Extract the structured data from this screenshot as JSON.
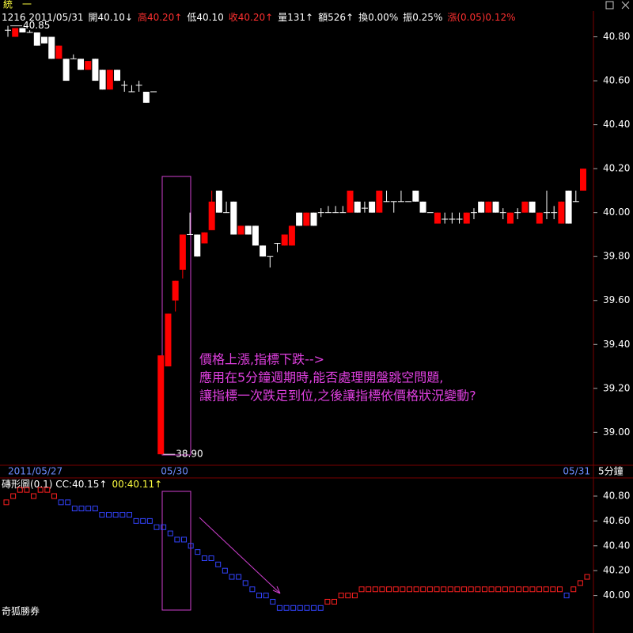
{
  "header": {
    "name": "統　一",
    "quote": [
      {
        "text": "1216 2011/05/31",
        "color": "#ffffff"
      },
      {
        "text": "開40.10↓",
        "color": "#ffffff"
      },
      {
        "text": "高40.20↑",
        "color": "#ff3030"
      },
      {
        "text": "低40.10",
        "color": "#ffffff"
      },
      {
        "text": "收40.20↑",
        "color": "#ff3030"
      },
      {
        "text": "量131↑",
        "color": "#ffffff"
      },
      {
        "text": "額526↑",
        "color": "#ffffff"
      },
      {
        "text": "換0.00%",
        "color": "#ffffff"
      },
      {
        "text": "振0.25%",
        "color": "#ffffff"
      },
      {
        "text": "漲(0.05)0.12%",
        "color": "#ff3030"
      }
    ]
  },
  "footer": "奇狐勝券",
  "chart_data": [
    {
      "type": "candlestick",
      "period": "5分鐘",
      "up_color": "#ff0000",
      "down_color": "#ffffff",
      "date_color": "#6c8cff",
      "categories": [
        "2011/05/27",
        null,
        null,
        null,
        null,
        null,
        null,
        null,
        null,
        null,
        null,
        null,
        null,
        null,
        null,
        null,
        null,
        null,
        null,
        null,
        null,
        "05/30",
        null,
        null,
        null,
        null,
        null,
        null,
        null,
        null,
        null,
        null,
        null,
        null,
        null,
        null,
        null,
        null,
        null,
        null,
        null,
        null,
        null,
        null,
        null,
        null,
        null,
        null,
        null,
        null,
        null,
        null,
        null,
        null,
        null,
        null,
        null,
        null,
        null,
        null,
        null,
        null,
        null,
        null,
        null,
        null,
        null,
        null,
        null,
        null,
        null,
        null,
        null,
        null,
        null,
        null,
        null,
        null,
        null,
        "05/31"
      ],
      "open": [
        40.83,
        40.8,
        40.84,
        40.82,
        40.82,
        40.8,
        40.8,
        40.7,
        40.7,
        40.7,
        40.7,
        40.65,
        40.7,
        40.65,
        40.56,
        40.65,
        40.58,
        40.55,
        40.58,
        40.55,
        40.55,
        38.9,
        39.3,
        39.6,
        39.74,
        39.9,
        39.9,
        39.86,
        39.92,
        40.1,
        40.0,
        40.05,
        39.9,
        39.94,
        39.94,
        39.85,
        39.8,
        39.86,
        39.85,
        39.85,
        40.0,
        39.94,
        40.0,
        40.0,
        40.0,
        40.0,
        40.0,
        40.0,
        40.05,
        40.02,
        40.05,
        40.0,
        40.05,
        40.05,
        40.05,
        40.05,
        40.1,
        40.05,
        40.0,
        39.95,
        39.97,
        39.97,
        39.97,
        39.95,
        40.0,
        40.05,
        40.0,
        40.05,
        40.0,
        39.95,
        40.0,
        40.0,
        40.05,
        39.95,
        40.0,
        40.0,
        39.95,
        40.1,
        40.05,
        40.1
      ],
      "high": [
        40.85,
        40.84,
        40.84,
        40.83,
        40.82,
        40.8,
        40.8,
        40.76,
        40.7,
        40.72,
        40.7,
        40.69,
        40.7,
        40.65,
        40.65,
        40.65,
        40.6,
        40.58,
        40.6,
        40.55,
        40.55,
        39.35,
        39.54,
        39.69,
        39.9,
        40.0,
        39.9,
        39.91,
        40.1,
        40.1,
        40.05,
        40.05,
        39.94,
        39.94,
        39.94,
        39.85,
        39.8,
        39.86,
        39.9,
        39.94,
        40.0,
        40.0,
        40.0,
        40.02,
        40.03,
        40.03,
        40.03,
        40.1,
        40.05,
        40.05,
        40.05,
        40.1,
        40.1,
        40.05,
        40.1,
        40.05,
        40.1,
        40.05,
        40.0,
        40.0,
        40.0,
        40.0,
        40.0,
        40.0,
        40.02,
        40.05,
        40.05,
        40.05,
        40.02,
        40.0,
        40.02,
        40.05,
        40.05,
        40.0,
        40.1,
        40.03,
        40.05,
        40.1,
        40.1,
        40.2
      ],
      "low": [
        40.8,
        40.8,
        40.82,
        40.82,
        40.76,
        40.77,
        40.7,
        40.7,
        40.6,
        40.7,
        40.65,
        40.65,
        40.6,
        40.56,
        40.56,
        40.6,
        40.55,
        40.55,
        40.55,
        40.5,
        40.55,
        38.9,
        39.3,
        39.55,
        39.7,
        39.9,
        39.8,
        39.86,
        39.92,
        40.0,
        40.0,
        39.9,
        39.9,
        39.9,
        39.85,
        39.8,
        39.75,
        39.82,
        39.85,
        39.85,
        39.94,
        39.94,
        39.94,
        39.98,
        40.0,
        40.0,
        40.0,
        40.0,
        40.0,
        40.0,
        40.0,
        40.0,
        40.05,
        40.0,
        40.05,
        40.05,
        40.05,
        40.0,
        40.0,
        39.95,
        39.95,
        39.95,
        39.95,
        39.95,
        39.97,
        40.0,
        40.0,
        40.0,
        39.97,
        39.95,
        39.97,
        40.0,
        40.0,
        39.95,
        39.97,
        39.97,
        39.95,
        39.95,
        40.05,
        40.1
      ],
      "close": [
        40.83,
        40.84,
        40.82,
        40.82,
        40.76,
        40.77,
        40.7,
        40.76,
        40.6,
        40.7,
        40.65,
        40.69,
        40.6,
        40.56,
        40.65,
        40.6,
        40.58,
        40.55,
        40.58,
        40.5,
        40.55,
        39.35,
        39.54,
        39.69,
        39.9,
        39.9,
        39.8,
        39.91,
        40.05,
        40.0,
        40.0,
        39.9,
        39.94,
        39.9,
        39.85,
        39.8,
        39.8,
        39.86,
        39.9,
        39.94,
        39.94,
        40.0,
        39.94,
        40.0,
        40.0,
        40.0,
        40.0,
        40.1,
        40.0,
        40.02,
        40.0,
        40.1,
        40.05,
        40.05,
        40.05,
        40.05,
        40.05,
        40.0,
        40.0,
        40.0,
        39.97,
        39.97,
        39.97,
        40.0,
        40.0,
        40.0,
        40.05,
        40.0,
        40.0,
        40.0,
        40.0,
        40.05,
        40.0,
        40.0,
        40.0,
        40.0,
        40.05,
        39.95,
        40.05,
        40.2
      ],
      "extreme_labels": [
        {
          "value": 40.85,
          "label": "40.85"
        },
        {
          "value": 38.9,
          "label": "38.90"
        }
      ],
      "ylim": [
        38.85,
        40.91
      ],
      "yticks": [
        {
          "value": 40.8,
          "label": "40.80"
        },
        {
          "value": 40.6,
          "label": "40.60"
        },
        {
          "value": 40.4,
          "label": "40.40"
        },
        {
          "value": 40.2,
          "label": "40.20"
        },
        {
          "value": 40.0,
          "label": "40.00"
        },
        {
          "value": 39.8,
          "label": "39.80"
        },
        {
          "value": 39.6,
          "label": "39.60"
        },
        {
          "value": 39.4,
          "label": "39.40"
        },
        {
          "value": 39.2,
          "label": "39.20"
        },
        {
          "value": 39.0,
          "label": "39.00"
        }
      ],
      "annotation": [
        "價格上漲,指標下跌-->",
        "應用在5分鐘週期時,能否處理開盤跳空問題,",
        "讓指標一次跌足到位,之後讓指標依價格狀況變動?"
      ],
      "grid": false
    },
    {
      "type": "brick",
      "title": [
        {
          "text": "磚形圖(0.1) CC:40.15↑",
          "color": "#ffffff"
        },
        {
          "text": "00:40.11↑",
          "color": "#ffff40"
        }
      ],
      "series": [
        {
          "color": "#ff2020",
          "values": [
            40.75,
            40.8,
            40.85,
            40.85,
            40.8,
            40.85,
            40.85,
            40.8,
            null,
            null,
            null,
            null,
            null,
            null,
            null,
            null,
            null,
            null,
            null,
            null,
            null,
            null,
            null,
            null,
            null,
            null,
            null,
            null,
            null,
            null,
            null,
            null,
            null,
            null,
            null,
            null,
            null,
            null,
            null,
            null,
            null,
            null,
            null,
            null,
            null,
            null,
            null,
            39.95,
            39.95,
            40.0,
            40.0,
            40.0,
            40.05,
            40.05,
            40.05,
            40.05,
            40.05,
            40.05,
            40.05,
            40.05,
            40.05,
            40.05,
            40.05,
            40.05,
            40.05,
            40.05,
            40.05,
            40.05,
            40.05,
            40.05,
            40.05,
            40.05,
            40.05,
            40.05,
            40.05,
            40.05,
            40.05,
            40.05,
            40.05,
            40.05,
            40.05,
            40.05,
            null,
            40.05,
            40.1,
            40.15
          ]
        },
        {
          "color": "#3344ff",
          "values": [
            null,
            null,
            null,
            null,
            null,
            null,
            null,
            null,
            40.75,
            40.75,
            40.7,
            40.7,
            40.7,
            40.7,
            40.65,
            40.65,
            40.65,
            40.65,
            40.65,
            40.6,
            40.6,
            40.6,
            40.55,
            40.55,
            40.5,
            40.45,
            40.45,
            40.4,
            40.35,
            40.3,
            40.3,
            40.25,
            40.2,
            40.15,
            40.15,
            40.1,
            40.05,
            40.0,
            40.0,
            39.95,
            39.9,
            39.9,
            39.9,
            39.9,
            39.9,
            39.9,
            39.9,
            null,
            null,
            null,
            null,
            null,
            null,
            null,
            null,
            null,
            null,
            null,
            null,
            null,
            null,
            null,
            null,
            null,
            null,
            null,
            null,
            null,
            null,
            null,
            null,
            null,
            null,
            null,
            null,
            null,
            null,
            null,
            null,
            null,
            null,
            null,
            40.0,
            null,
            null,
            null
          ]
        }
      ],
      "ylim": [
        39.73,
        40.94
      ],
      "yticks": [
        {
          "value": 40.8,
          "label": "40.80"
        },
        {
          "value": 40.6,
          "label": "40.60"
        },
        {
          "value": 40.4,
          "label": "40.40"
        },
        {
          "value": 40.2,
          "label": "40.20"
        },
        {
          "value": 40.0,
          "label": "40.00"
        }
      ],
      "grid": false
    }
  ]
}
